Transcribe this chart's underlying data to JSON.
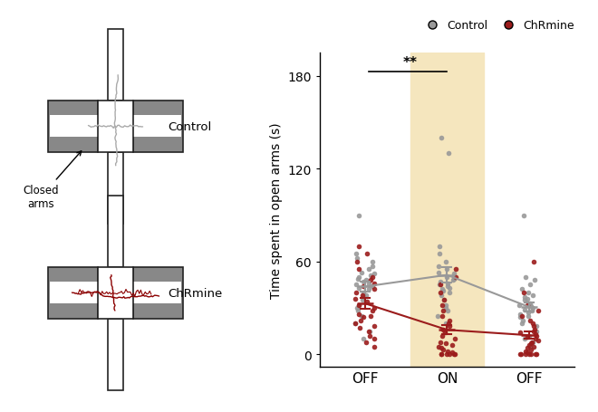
{
  "background_color": "#ffffff",
  "ylabel": "Time spent in open arms (s)",
  "xtick_labels": [
    "OFF",
    "ON",
    "OFF"
  ],
  "ytick_values": [
    0,
    60,
    120,
    180
  ],
  "ylim": [
    -8,
    195
  ],
  "legend_labels": [
    "Control",
    "ChRmine"
  ],
  "legend_colors": [
    "#999999",
    "#9b1c1c"
  ],
  "highlight_color": "#f5e6be",
  "sig_label": "**",
  "control_color": "#999999",
  "chrmine_color": "#9b1c1c",
  "ctrl_off1": [
    10,
    15,
    20,
    25,
    28,
    30,
    32,
    35,
    37,
    38,
    40,
    42,
    43,
    44,
    45,
    46,
    47,
    48,
    49,
    50,
    51,
    52,
    53,
    55,
    57,
    60,
    62,
    65,
    90
  ],
  "ctrl_on": [
    20,
    25,
    28,
    30,
    32,
    35,
    38,
    40,
    41,
    42,
    43,
    44,
    45,
    46,
    47,
    48,
    49,
    50,
    52,
    53,
    55,
    57,
    60,
    65,
    70,
    130,
    140
  ],
  "ctrl_off2": [
    5,
    8,
    10,
    12,
    15,
    18,
    20,
    22,
    24,
    25,
    26,
    27,
    28,
    29,
    30,
    31,
    32,
    33,
    35,
    36,
    37,
    38,
    40,
    42,
    45,
    48,
    50,
    90
  ],
  "chr_off1": [
    5,
    8,
    10,
    12,
    15,
    17,
    18,
    20,
    22,
    24,
    25,
    26,
    28,
    30,
    32,
    34,
    36,
    38,
    40,
    42,
    44,
    46,
    48,
    50,
    55,
    60,
    65,
    70
  ],
  "chr_on": [
    0,
    0,
    0,
    0,
    0,
    0,
    1,
    2,
    3,
    4,
    5,
    6,
    7,
    8,
    10,
    12,
    14,
    16,
    18,
    20,
    22,
    25,
    28,
    32,
    35,
    40,
    45,
    50,
    55
  ],
  "chr_off2": [
    0,
    0,
    0,
    0,
    0,
    0,
    0,
    1,
    2,
    3,
    4,
    5,
    6,
    7,
    8,
    9,
    10,
    11,
    12,
    13,
    14,
    15,
    16,
    18,
    20,
    22,
    25,
    28,
    32,
    40,
    60
  ],
  "maze_border_color": "#222222",
  "maze_closed_fill": "#888888",
  "maze_open_fill": "#ffffff",
  "maze_inner_white": "#ffffff",
  "maze_gray_path": "#aaaaaa",
  "maze_red_path": "#8b0000"
}
